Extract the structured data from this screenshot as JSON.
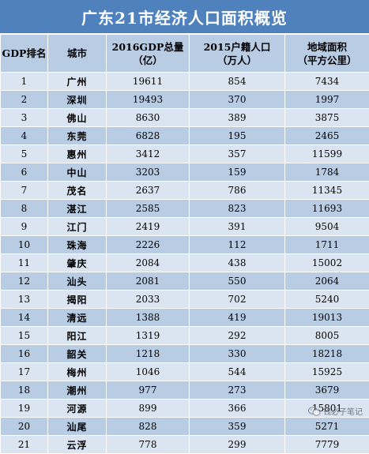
{
  "title": "广东21市经济人口面积概览",
  "headers": {
    "rank": "GDP排名",
    "city": "城市",
    "gdp_line1": "2016GDP总量",
    "gdp_line2": "（亿）",
    "pop_line1": "2015户籍人口",
    "pop_line2": "（万人）",
    "area_line1": "地域面积",
    "area_line2": "（平方公里）"
  },
  "rows": [
    {
      "rank": "1",
      "city": "广州",
      "gdp": "19611",
      "pop": "854",
      "area": "7434"
    },
    {
      "rank": "2",
      "city": "深圳",
      "gdp": "19493",
      "pop": "370",
      "area": "1997"
    },
    {
      "rank": "3",
      "city": "佛山",
      "gdp": "8630",
      "pop": "389",
      "area": "3875"
    },
    {
      "rank": "4",
      "city": "东莞",
      "gdp": "6828",
      "pop": "195",
      "area": "2465"
    },
    {
      "rank": "5",
      "city": "惠州",
      "gdp": "3412",
      "pop": "357",
      "area": "11599"
    },
    {
      "rank": "6",
      "city": "中山",
      "gdp": "3203",
      "pop": "159",
      "area": "1784"
    },
    {
      "rank": "7",
      "city": "茂名",
      "gdp": "2637",
      "pop": "786",
      "area": "11345"
    },
    {
      "rank": "8",
      "city": "湛江",
      "gdp": "2585",
      "pop": "823",
      "area": "11693"
    },
    {
      "rank": "9",
      "city": "江门",
      "gdp": "2419",
      "pop": "391",
      "area": "9504"
    },
    {
      "rank": "10",
      "city": "珠海",
      "gdp": "2226",
      "pop": "112",
      "area": "1711"
    },
    {
      "rank": "11",
      "city": "肇庆",
      "gdp": "2084",
      "pop": "438",
      "area": "15002"
    },
    {
      "rank": "12",
      "city": "汕头",
      "gdp": "2081",
      "pop": "550",
      "area": "2064"
    },
    {
      "rank": "13",
      "city": "揭阳",
      "gdp": "2033",
      "pop": "702",
      "area": "5240"
    },
    {
      "rank": "14",
      "city": "清远",
      "gdp": "1388",
      "pop": "419",
      "area": "19013"
    },
    {
      "rank": "15",
      "city": "阳江",
      "gdp": "1319",
      "pop": "292",
      "area": "8005"
    },
    {
      "rank": "16",
      "city": "韶关",
      "gdp": "1218",
      "pop": "330",
      "area": "18218"
    },
    {
      "rank": "17",
      "city": "梅州",
      "gdp": "1046",
      "pop": "544",
      "area": "15925"
    },
    {
      "rank": "18",
      "city": "潮州",
      "gdp": "977",
      "pop": "273",
      "area": "3679"
    },
    {
      "rank": "19",
      "city": "河源",
      "gdp": "899",
      "pop": "366",
      "area": "15801"
    },
    {
      "rank": "20",
      "city": "汕尾",
      "gdp": "828",
      "pop": "359",
      "area": "5271"
    },
    {
      "rank": "21",
      "city": "云浮",
      "gdp": "778",
      "pop": "299",
      "area": "7779"
    }
  ],
  "watermark": {
    "text": "钱必子笔记",
    "icon": "wechat-icon"
  },
  "colors": {
    "title_bg": "#4f81bd",
    "header_bg": "#b8cce4",
    "row_light": "#dbe5f1",
    "row_dark": "#b8cce4"
  }
}
